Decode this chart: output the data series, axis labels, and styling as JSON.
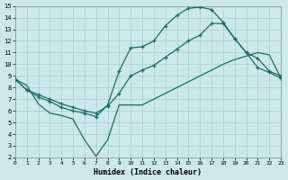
{
  "xlabel": "Humidex (Indice chaleur)",
  "bg_color": "#cce8e8",
  "grid_color": "#aacccc",
  "line_color": "#1a6b6b",
  "xlim": [
    0,
    23
  ],
  "ylim": [
    2,
    15
  ],
  "xticks": [
    0,
    1,
    2,
    3,
    4,
    5,
    6,
    7,
    8,
    9,
    10,
    11,
    12,
    13,
    14,
    15,
    16,
    17,
    18,
    19,
    20,
    21,
    22,
    23
  ],
  "yticks": [
    2,
    3,
    4,
    5,
    6,
    7,
    8,
    9,
    10,
    11,
    12,
    13,
    14,
    15
  ],
  "line1_x": [
    0,
    1,
    2,
    3,
    4,
    5,
    6,
    7,
    8,
    9,
    10,
    11,
    12,
    13,
    14,
    15,
    16,
    17,
    18,
    19,
    20,
    21,
    22,
    23
  ],
  "line1_y": [
    8.7,
    7.8,
    7.2,
    6.8,
    6.3,
    6.0,
    5.8,
    5.5,
    6.5,
    9.4,
    11.4,
    11.5,
    12.0,
    13.3,
    14.2,
    14.8,
    14.9,
    14.7,
    13.6,
    12.2,
    11.0,
    9.7,
    9.3,
    8.8
  ],
  "line2_x": [
    0,
    1,
    2,
    3,
    4,
    5,
    6,
    7,
    8,
    9,
    10,
    11,
    12,
    13,
    14,
    15,
    16,
    17,
    18,
    19,
    20,
    21,
    22,
    23
  ],
  "line2_y": [
    8.7,
    7.8,
    7.4,
    7.0,
    6.6,
    6.3,
    6.0,
    5.8,
    6.4,
    7.5,
    9.0,
    9.5,
    9.9,
    10.6,
    11.3,
    12.0,
    12.5,
    13.5,
    13.5,
    12.2,
    11.0,
    10.5,
    9.4,
    9.0
  ],
  "line3_x": [
    0,
    1,
    2,
    3,
    4,
    5,
    6,
    7,
    8,
    9,
    10,
    11,
    12,
    13,
    14,
    15,
    16,
    17,
    18,
    19,
    20,
    21,
    22,
    23
  ],
  "line3_y": [
    8.7,
    8.2,
    6.6,
    5.8,
    5.6,
    5.3,
    3.5,
    2.1,
    3.5,
    6.5,
    6.5,
    6.5,
    7.0,
    7.5,
    8.0,
    8.5,
    9.0,
    9.5,
    10.0,
    10.4,
    10.7,
    11.0,
    10.8,
    8.8
  ]
}
